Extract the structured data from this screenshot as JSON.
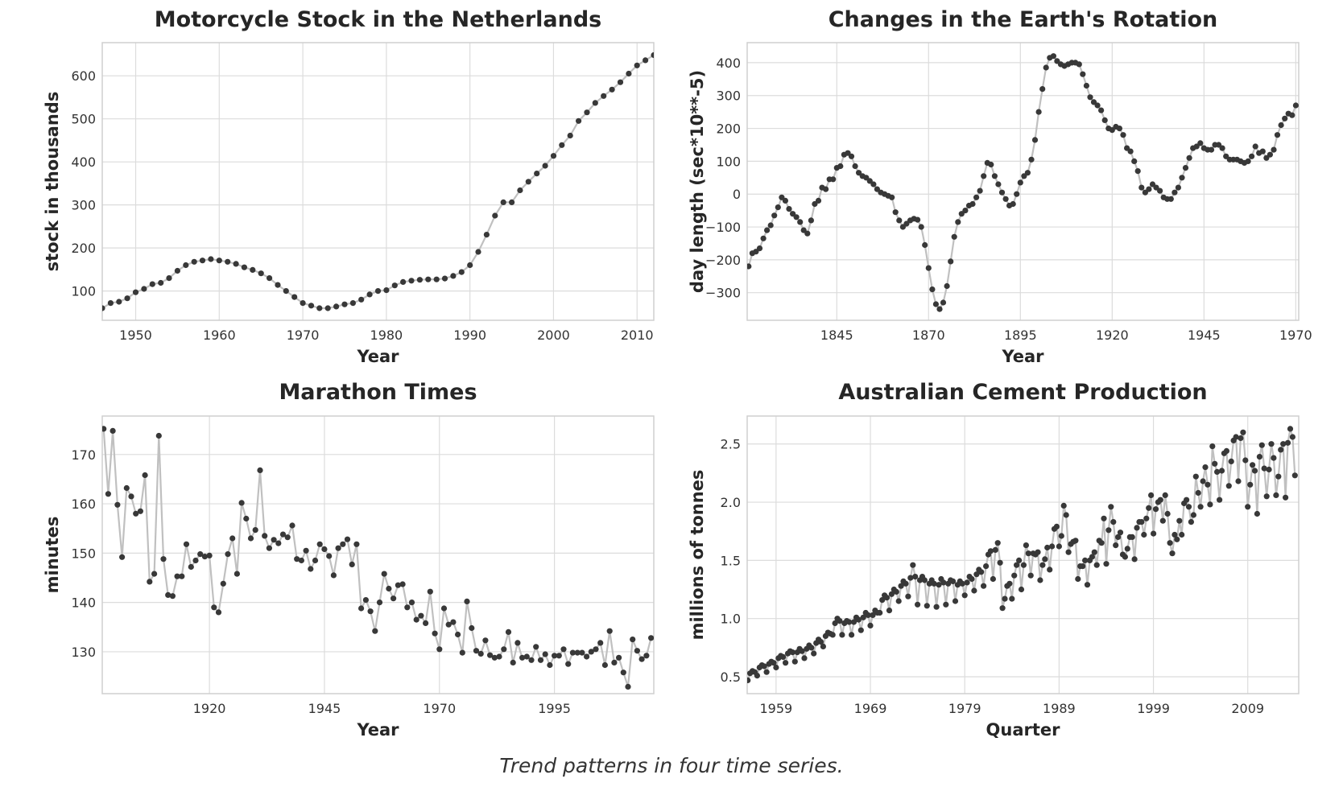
{
  "caption": "Trend patterns in four time series.",
  "colors": {
    "line": "#c0c0c0",
    "marker": "#383838",
    "grid": "#dcdcdc"
  },
  "chart_data": [
    {
      "type": "line",
      "title": "Motorcycle Stock in the Netherlands",
      "xlabel": "Year",
      "ylabel": "stock in thousands",
      "xlim": [
        1946,
        2012
      ],
      "ylim": [
        32,
        677
      ],
      "xticks": [
        1950,
        1960,
        1970,
        1980,
        1990,
        2000,
        2010
      ],
      "xtick_labels": [
        "1950",
        "1960",
        "1970",
        "1980",
        "1990",
        "2000",
        "2010"
      ],
      "yticks": [
        100,
        200,
        300,
        400,
        500,
        600
      ],
      "ytick_labels": [
        "100",
        "200",
        "300",
        "400",
        "500",
        "600"
      ],
      "grid": true,
      "x_start": 1946,
      "x_step": 1,
      "values": [
        60,
        72,
        75,
        83,
        97,
        105,
        116,
        119,
        130,
        147,
        160,
        168,
        171,
        174,
        171,
        168,
        163,
        155,
        149,
        141,
        130,
        114,
        100,
        86,
        72,
        66,
        60,
        60,
        64,
        69,
        72,
        80,
        92,
        100,
        102,
        113,
        121,
        124,
        126,
        127,
        127,
        129,
        135,
        144,
        160,
        191,
        231,
        275,
        306,
        306,
        334,
        354,
        373,
        391,
        414,
        439,
        461,
        495,
        515,
        537,
        553,
        568,
        585,
        605,
        624,
        636,
        648
      ]
    },
    {
      "type": "line",
      "title": "Changes in the Earth's Rotation",
      "xlabel": "Year",
      "ylabel": "day length (sec*10**-5)",
      "xlim": [
        1820.6,
        1970.8
      ],
      "ylim": [
        -384,
        461
      ],
      "xticks": [
        1845,
        1870,
        1895,
        1920,
        1945,
        1970
      ],
      "xtick_labels": [
        "1845",
        "1870",
        "1895",
        "1920",
        "1945",
        "1970"
      ],
      "yticks": [
        -300,
        -200,
        -100,
        0,
        100,
        200,
        300,
        400
      ],
      "ytick_labels": [
        "−300",
        "−200",
        "−100",
        "0",
        "100",
        "200",
        "300",
        "400"
      ],
      "grid": true,
      "x_start": 1821,
      "x_step": 1,
      "values": [
        -220,
        -180,
        -175,
        -165,
        -135,
        -110,
        -95,
        -65,
        -40,
        -10,
        -20,
        -45,
        -60,
        -70,
        -85,
        -110,
        -120,
        -80,
        -30,
        -20,
        20,
        15,
        45,
        45,
        80,
        85,
        120,
        125,
        115,
        85,
        65,
        55,
        50,
        40,
        30,
        15,
        5,
        0,
        -5,
        -10,
        -55,
        -80,
        -100,
        -90,
        -80,
        -75,
        -78,
        -100,
        -155,
        -225,
        -290,
        -335,
        -350,
        -330,
        -280,
        -205,
        -130,
        -85,
        -60,
        -50,
        -35,
        -30,
        -10,
        10,
        55,
        95,
        90,
        55,
        30,
        5,
        -15,
        -35,
        -30,
        0,
        35,
        55,
        65,
        105,
        165,
        250,
        320,
        385,
        415,
        420,
        405,
        395,
        390,
        395,
        400,
        400,
        395,
        365,
        330,
        295,
        280,
        270,
        255,
        225,
        200,
        195,
        205,
        200,
        180,
        140,
        130,
        100,
        70,
        20,
        5,
        15,
        30,
        20,
        10,
        -10,
        -15,
        -15,
        5,
        20,
        50,
        80,
        110,
        140,
        145,
        155,
        140,
        135,
        135,
        150,
        150,
        140,
        115,
        105,
        105,
        105,
        100,
        95,
        100,
        115,
        145,
        125,
        130,
        110,
        120,
        135,
        180,
        210,
        230,
        245,
        240,
        270
      ]
    },
    {
      "type": "line",
      "title": "Marathon Times",
      "xlabel": "Year",
      "ylabel": "minutes",
      "xlim": [
        1896.7,
        2016.6
      ],
      "ylim": [
        121.5,
        177.8
      ],
      "xticks": [
        1920,
        1945,
        1970,
        1995
      ],
      "xtick_labels": [
        "1920",
        "1945",
        "1970",
        "1995"
      ],
      "yticks": [
        130,
        140,
        150,
        160,
        170
      ],
      "ytick_labels": [
        "130",
        "140",
        "150",
        "160",
        "170"
      ],
      "grid": true,
      "x_start": 1897,
      "x_step": 1,
      "values": [
        175.2,
        162,
        174.8,
        159.8,
        149.2,
        163.2,
        161.5,
        158,
        158.5,
        165.8,
        144.2,
        145.8,
        173.8,
        148.8,
        141.5,
        141.3,
        145.3,
        145.3,
        151.8,
        147.2,
        148.5,
        149.8,
        149.3,
        149.5,
        139,
        138,
        143.8,
        149.8,
        153,
        145.8,
        160.2,
        157,
        153,
        154.7,
        166.8,
        153.5,
        151,
        152.7,
        152,
        153.8,
        153.2,
        155.6,
        148.8,
        148.5,
        150.5,
        146.8,
        148.5,
        151.8,
        150.8,
        149.4,
        145.5,
        151,
        151.8,
        152.8,
        147.7,
        151.8,
        138.8,
        140.5,
        138.2,
        134.2,
        140,
        145.8,
        142.8,
        140.8,
        143.5,
        143.7,
        139,
        140,
        136.5,
        137.3,
        135.8,
        142.2,
        133.7,
        130.5,
        138.8,
        135.5,
        136,
        133.5,
        129.8,
        140.2,
        134.8,
        130.2,
        129.6,
        132.3,
        129.3,
        128.8,
        129,
        130.5,
        134,
        127.8,
        131.8,
        128.8,
        129,
        128.3,
        131,
        128.3,
        129.5,
        127.3,
        129.2,
        129.2,
        130.5,
        127.5,
        129.8,
        129.8,
        129.8,
        129,
        130,
        130.5,
        131.8,
        127.3,
        134.2,
        127.8,
        128.8,
        125.8,
        122.9,
        132.5,
        130.2,
        128.5,
        129.2,
        132.8
      ]
    },
    {
      "type": "line",
      "title": "Australian Cement Production",
      "xlabel": "Quarter",
      "ylabel": "millions of tonnes",
      "xlim": [
        1955.94,
        2014.4
      ],
      "ylim": [
        0.355,
        2.74
      ],
      "xticks": [
        1959,
        1969,
        1979,
        1989,
        1999,
        2009
      ],
      "xtick_labels": [
        "1959",
        "1969",
        "1979",
        "1989",
        "1999",
        "2009"
      ],
      "yticks": [
        0.5,
        1.0,
        1.5,
        2.0,
        2.5
      ],
      "ytick_labels": [
        "0.5",
        "1.0",
        "1.5",
        "2.0",
        "2.5"
      ],
      "grid": true,
      "x_start": 1956,
      "x_step": 0.25,
      "values": [
        0.47,
        0.53,
        0.55,
        0.54,
        0.51,
        0.58,
        0.6,
        0.59,
        0.54,
        0.61,
        0.63,
        0.62,
        0.58,
        0.66,
        0.68,
        0.67,
        0.62,
        0.7,
        0.72,
        0.71,
        0.63,
        0.71,
        0.74,
        0.72,
        0.66,
        0.74,
        0.77,
        0.75,
        0.7,
        0.79,
        0.82,
        0.8,
        0.76,
        0.85,
        0.88,
        0.87,
        0.86,
        0.96,
        1.0,
        0.98,
        0.86,
        0.96,
        0.98,
        0.97,
        0.86,
        0.97,
        1.01,
        0.99,
        0.9,
        1.01,
        1.05,
        1.03,
        0.94,
        1.03,
        1.07,
        1.05,
        1.05,
        1.16,
        1.2,
        1.18,
        1.07,
        1.21,
        1.25,
        1.23,
        1.15,
        1.28,
        1.32,
        1.3,
        1.19,
        1.35,
        1.46,
        1.36,
        1.12,
        1.33,
        1.36,
        1.33,
        1.11,
        1.3,
        1.33,
        1.3,
        1.1,
        1.29,
        1.34,
        1.31,
        1.12,
        1.3,
        1.33,
        1.32,
        1.15,
        1.29,
        1.32,
        1.3,
        1.2,
        1.31,
        1.36,
        1.34,
        1.24,
        1.38,
        1.42,
        1.4,
        1.28,
        1.45,
        1.55,
        1.58,
        1.34,
        1.59,
        1.65,
        1.48,
        1.09,
        1.17,
        1.28,
        1.3,
        1.17,
        1.37,
        1.46,
        1.5,
        1.25,
        1.46,
        1.63,
        1.56,
        1.37,
        1.56,
        1.55,
        1.57,
        1.33,
        1.46,
        1.51,
        1.61,
        1.42,
        1.62,
        1.77,
        1.79,
        1.62,
        1.71,
        1.97,
        1.89,
        1.57,
        1.64,
        1.66,
        1.67,
        1.34,
        1.45,
        1.45,
        1.5,
        1.29,
        1.5,
        1.53,
        1.57,
        1.46,
        1.67,
        1.65,
        1.86,
        1.47,
        1.76,
        1.96,
        1.83,
        1.63,
        1.7,
        1.74,
        1.55,
        1.53,
        1.6,
        1.7,
        1.7,
        1.51,
        1.78,
        1.83,
        1.83,
        1.72,
        1.86,
        1.95,
        2.06,
        1.73,
        1.94,
        2.0,
        2.02,
        1.84,
        2.06,
        1.9,
        1.65,
        1.56,
        1.72,
        1.68,
        1.84,
        1.72,
        1.99,
        2.02,
        1.96,
        1.83,
        1.89,
        2.22,
        2.08,
        1.96,
        2.18,
        2.3,
        2.15,
        1.98,
        2.48,
        2.33,
        2.26,
        2.02,
        2.27,
        2.42,
        2.44,
        2.14,
        2.35,
        2.53,
        2.56,
        2.18,
        2.55,
        2.6,
        2.36,
        1.96,
        2.15,
        2.32,
        2.27,
        1.9,
        2.39,
        2.49,
        2.29,
        2.05,
        2.28,
        2.5,
        2.38,
        2.06,
        2.22,
        2.45,
        2.5,
        2.04,
        2.51,
        2.63,
        2.56,
        2.23
      ]
    }
  ]
}
